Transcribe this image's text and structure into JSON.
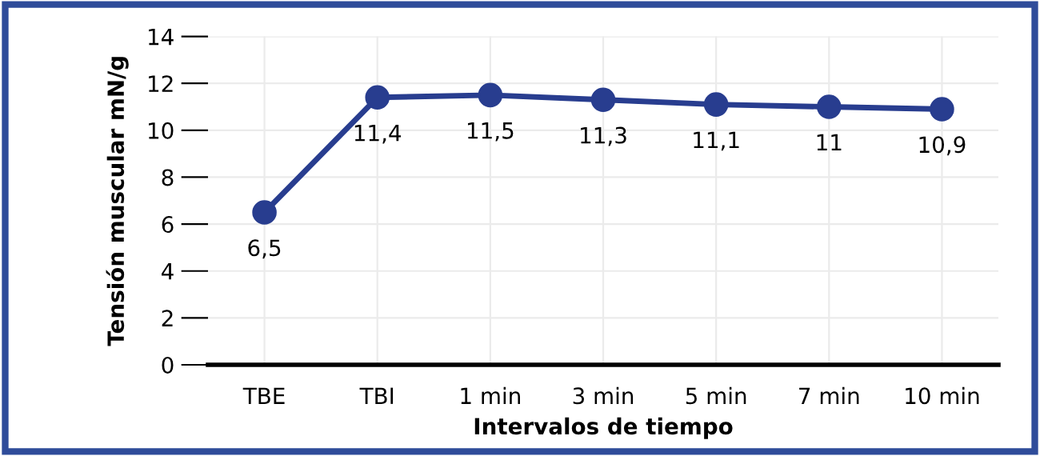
{
  "chart_data": {
    "type": "line",
    "xlabel": "Intervalos de tiempo",
    "ylabel": "Tensión muscular mN/g",
    "categories": [
      "TBE",
      "TBI",
      "1 min",
      "3 min",
      "5 min",
      "7 min",
      "10 min"
    ],
    "series": [
      {
        "color": "#283d8f",
        "values": [
          6.5,
          11.4,
          11.5,
          11.3,
          11.1,
          11,
          10.9
        ],
        "value_labels": [
          "6,5",
          "11,4",
          "11,5",
          "11,3",
          "11,1",
          "11",
          "10,9"
        ]
      }
    ],
    "ylim": [
      0,
      14
    ],
    "yticks": [
      0,
      2,
      4,
      6,
      8,
      10,
      12,
      14
    ],
    "grid": true,
    "marker": "circle",
    "line_style": "solid",
    "legend": false
  }
}
